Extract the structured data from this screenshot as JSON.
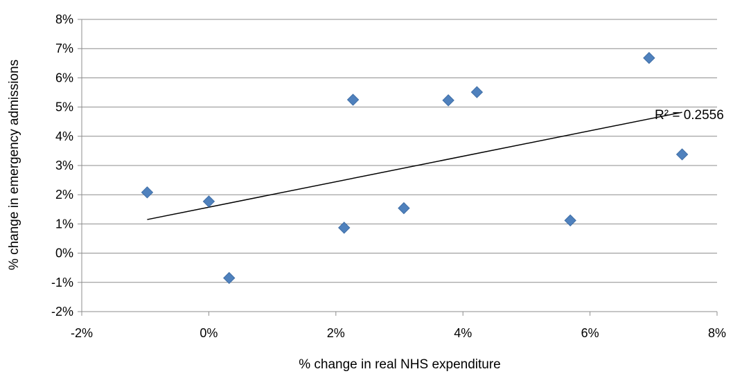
{
  "chart_data": {
    "type": "scatter",
    "xlabel": "% change in real NHS expenditure",
    "ylabel": "% change in emergency admissions",
    "xlim": [
      -2,
      8
    ],
    "ylim": [
      -2,
      8
    ],
    "x_ticks": [
      -2,
      0,
      2,
      4,
      6,
      8
    ],
    "y_ticks": [
      -2,
      -1,
      0,
      1,
      2,
      3,
      4,
      5,
      6,
      7,
      8
    ],
    "x_tick_labels": [
      "-2%",
      "0%",
      "2%",
      "4%",
      "6%",
      "8%"
    ],
    "y_tick_labels": [
      "-2%",
      "-1%",
      "0%",
      "1%",
      "2%",
      "3%",
      "4%",
      "5%",
      "6%",
      "7%",
      "8%"
    ],
    "grid": {
      "horizontal": true,
      "vertical": false
    },
    "marker": "diamond",
    "marker_color": "#4F81BD",
    "points": [
      {
        "x": -0.97,
        "y": 2.08
      },
      {
        "x": 0.0,
        "y": 1.77
      },
      {
        "x": 0.32,
        "y": -0.85
      },
      {
        "x": 2.13,
        "y": 0.87
      },
      {
        "x": 2.27,
        "y": 5.25
      },
      {
        "x": 3.07,
        "y": 1.54
      },
      {
        "x": 3.77,
        "y": 5.23
      },
      {
        "x": 4.22,
        "y": 5.51
      },
      {
        "x": 5.69,
        "y": 1.12
      },
      {
        "x": 6.93,
        "y": 6.68
      },
      {
        "x": 7.45,
        "y": 3.38
      }
    ],
    "trendline": {
      "type": "linear",
      "color": "#000000",
      "start": {
        "x": -0.97,
        "y": 1.15
      },
      "end": {
        "x": 7.45,
        "y": 4.82
      },
      "label": "R² = 0.2556"
    }
  }
}
